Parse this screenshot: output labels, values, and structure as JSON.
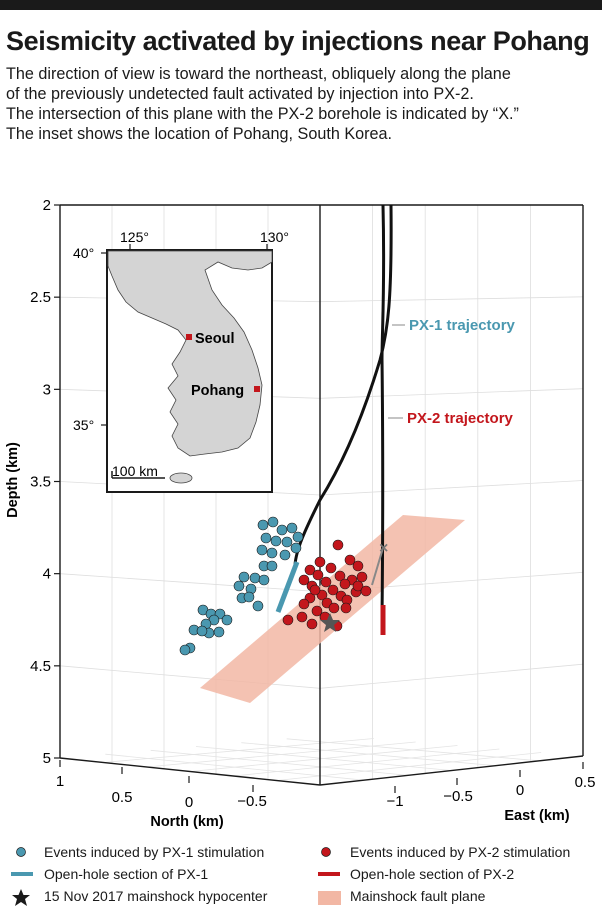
{
  "title": "Seismicity activated by injections near Pohang",
  "subtitle": [
    "The direction of view is toward the northeast, obliquely along the plane",
    "of the previously undetected fault activated by injection into PX-2.",
    "The intersection of this plane with the PX-2 borehole is indicated by “X.”",
    "The inset shows the location of Pohang, South Korea."
  ],
  "colors": {
    "px1": "#4a98b0",
    "px2": "#c3161c",
    "fault_plane": "#f2b7a4",
    "trajectory": "#111111"
  },
  "chart_data": {
    "type": "scatter",
    "title": "Seismicity activated by injections near Pohang",
    "zlabel": "Depth (km)",
    "xlabel": "North (km)",
    "ylabel": "East (km)",
    "zlim": [
      2,
      5
    ],
    "z_ticks": [
      "2",
      "2.5",
      "3",
      "3.5",
      "4",
      "4.5",
      "5"
    ],
    "north_ticks": [
      "1",
      "0.5",
      "0",
      "−0.5"
    ],
    "east_ticks": [
      "−1",
      "−0.5",
      "0",
      "0.5"
    ],
    "trajectory_labels": {
      "px1": "PX-1 trajectory",
      "px2": "PX-2 trajectory"
    },
    "series": [
      {
        "name": "Events induced by PX-1 stimulation",
        "points": [
          [
            263,
            525
          ],
          [
            273,
            522
          ],
          [
            282,
            530
          ],
          [
            292,
            528
          ],
          [
            298,
            537
          ],
          [
            266,
            538
          ],
          [
            276,
            541
          ],
          [
            262,
            550
          ],
          [
            287,
            542
          ],
          [
            272,
            553
          ],
          [
            285,
            555
          ],
          [
            296,
            548
          ],
          [
            264,
            566
          ],
          [
            272,
            566
          ],
          [
            244,
            577
          ],
          [
            255,
            578
          ],
          [
            264,
            580
          ],
          [
            239,
            586
          ],
          [
            251,
            589
          ],
          [
            242,
            598
          ],
          [
            249,
            597
          ],
          [
            258,
            606
          ],
          [
            203,
            610
          ],
          [
            211,
            614
          ],
          [
            220,
            614
          ],
          [
            227,
            620
          ],
          [
            214,
            620
          ],
          [
            206,
            624
          ],
          [
            194,
            630
          ],
          [
            209,
            633
          ],
          [
            219,
            632
          ],
          [
            202,
            631
          ],
          [
            190,
            648
          ],
          [
            185,
            650
          ]
        ]
      },
      {
        "name": "Events induced by PX-2 stimulation",
        "points": [
          [
            338,
            545
          ],
          [
            320,
            562
          ],
          [
            350,
            560
          ],
          [
            331,
            568
          ],
          [
            310,
            570
          ],
          [
            358,
            566
          ],
          [
            318,
            575
          ],
          [
            340,
            576
          ],
          [
            352,
            580
          ],
          [
            362,
            577
          ],
          [
            304,
            580
          ],
          [
            326,
            582
          ],
          [
            345,
            584
          ],
          [
            312,
            586
          ],
          [
            333,
            590
          ],
          [
            356,
            592
          ],
          [
            322,
            595
          ],
          [
            341,
            596
          ],
          [
            310,
            598
          ],
          [
            347,
            600
          ],
          [
            327,
            603
          ],
          [
            304,
            604
          ],
          [
            334,
            608
          ],
          [
            317,
            611
          ],
          [
            346,
            608
          ],
          [
            302,
            617
          ],
          [
            288,
            620
          ],
          [
            325,
            617
          ],
          [
            312,
            624
          ],
          [
            337,
            626
          ],
          [
            358,
            586
          ],
          [
            366,
            591
          ],
          [
            315,
            590
          ]
        ]
      }
    ],
    "legend": [
      {
        "key": "px1-events",
        "label": "Events induced by PX-1 stimulation"
      },
      {
        "key": "px1-openhole",
        "label": "Open-hole section of PX-1"
      },
      {
        "key": "mainshock",
        "label": "15 Nov 2017 mainshock hypocenter"
      },
      {
        "key": "px2-events",
        "label": "Events induced by PX-2 stimulation"
      },
      {
        "key": "px2-openhole",
        "label": "Open-hole section of PX-2"
      },
      {
        "key": "fault-plane",
        "label": "Mainshock fault plane"
      }
    ]
  },
  "inset": {
    "lon_ticks": [
      "125°",
      "130°"
    ],
    "lat_ticks": [
      "40°",
      "35°"
    ],
    "cities": [
      "Seoul",
      "Pohang"
    ],
    "scale_label": "100 km"
  }
}
